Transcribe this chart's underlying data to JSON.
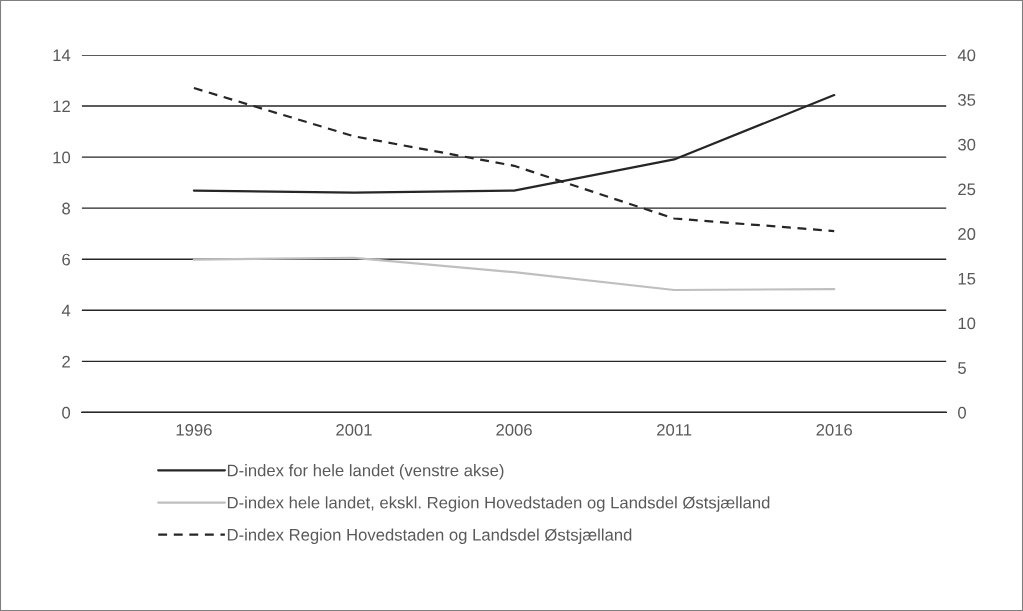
{
  "chart_data": {
    "type": "line",
    "categories": [
      "1996",
      "2001",
      "2006",
      "2011",
      "2016"
    ],
    "series": [
      {
        "name": "D-index for hele landet (venstre akse)",
        "color": "#262626",
        "values": [
          8.69,
          8.61,
          8.69,
          9.91,
          12.43
        ],
        "line_style": "solid"
      },
      {
        "name": "D-index hele landet, ekskl. Region Hovedstaden og Landsdel Østsjælland",
        "color": "#bfbfbf",
        "values": [
          17.1,
          17.3,
          15.7,
          13.7,
          13.8
        ],
        "axis": "y2",
        "line_style": "solid"
      },
      {
        "name": "D-index Region Hovedstaden og Landsdel Østsjælland",
        "color": "#262626",
        "values": [
          36.3,
          30.9,
          27.6,
          21.7,
          20.3
        ],
        "axis": "y2",
        "line_style": "dashed"
      }
    ],
    "ylim": [
      0,
      14
    ],
    "yticks": [
      0,
      2,
      4,
      6,
      8,
      10,
      12,
      14
    ],
    "y2lim": [
      0,
      40
    ],
    "y2ticks": [
      0,
      5,
      10,
      15,
      20,
      25,
      30,
      35,
      40
    ],
    "grid": "y",
    "legend": "bottom",
    "marker": "none"
  }
}
